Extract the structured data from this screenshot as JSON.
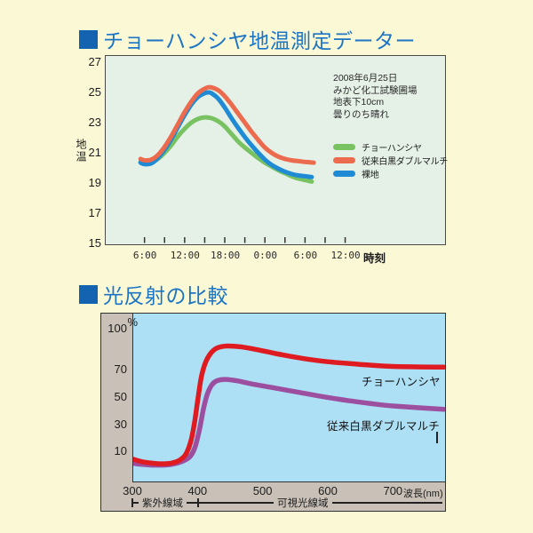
{
  "colors": {
    "page_bg": "#FBF8D6",
    "title_text": "#1C74C5",
    "title_square": "#1463B0",
    "chart1_bg": "#E5F0E7",
    "chart2_plot_bg": "#ADE0F5",
    "chart2_frame_bg": "#C9C0B7",
    "series_green": "#79C262",
    "series_red": "#EC6A4D",
    "series_blue": "#1F8BD4",
    "reflect_red": "#DF1B22",
    "reflect_purple": "#9C4E9F"
  },
  "section1": {
    "title": "チョーハンシヤ地温測定データー",
    "ylabel": "地温",
    "xlabel": "時刻",
    "annotation_lines": [
      "2008年6月25日",
      "みかど化工試験圃場",
      "地表下10cm",
      "曇りのち晴れ"
    ],
    "legend": [
      {
        "label": "チョーハンシヤ",
        "color": "#79C262"
      },
      {
        "label": "従来白黒ダブルマルチ",
        "color": "#EC6A4D"
      },
      {
        "label": "裸地",
        "color": "#1F8BD4"
      }
    ]
  },
  "section2": {
    "title": "光反射の比較",
    "unit": "%",
    "xlabel": "波長(nm)",
    "curve_labels": [
      "チョーハンシヤ",
      "従来白黒ダブルマルチ"
    ],
    "regions": [
      "紫外線域",
      "可視光線域"
    ]
  },
  "chart_data": [
    {
      "type": "line",
      "title": "チョーハンシヤ地温測定データー",
      "xlabel": "時刻",
      "ylabel": "地温",
      "ylim": [
        15,
        27
      ],
      "yticks": [
        27,
        25,
        23,
        21,
        19,
        17,
        15
      ],
      "x_hours_span": [
        0,
        51
      ],
      "xticks": [
        {
          "hour": 6,
          "label": "6:00"
        },
        {
          "hour": 12,
          "label": "12:00"
        },
        {
          "hour": 18,
          "label": "18:00"
        },
        {
          "hour": 24,
          "label": "0:00"
        },
        {
          "hour": 30,
          "label": "6:00"
        },
        {
          "hour": 36,
          "label": "12:00"
        }
      ],
      "minor_tick_every_hours": 3,
      "annotation": "2008年6月25日 みかど化工試験圃場 地表下10cm 曇りのち晴れ",
      "legend_position": "right",
      "grid": false,
      "series": [
        {
          "name": "チョーハンシヤ",
          "color": "#79C262",
          "points": [
            [
              5.4,
              20.25
            ],
            [
              6,
              20.15
            ],
            [
              7,
              20.2
            ],
            [
              8,
              20.45
            ],
            [
              9,
              20.85
            ],
            [
              10,
              21.35
            ],
            [
              11,
              21.95
            ],
            [
              12,
              22.45
            ],
            [
              13,
              22.85
            ],
            [
              14,
              23.1
            ],
            [
              15,
              23.2
            ],
            [
              16,
              23.15
            ],
            [
              17,
              22.95
            ],
            [
              18,
              22.6
            ],
            [
              19,
              22.1
            ],
            [
              20,
              21.6
            ],
            [
              21,
              21.2
            ],
            [
              22,
              20.85
            ],
            [
              23,
              20.5
            ],
            [
              24,
              20.2
            ],
            [
              25,
              19.95
            ],
            [
              26,
              19.7
            ],
            [
              27,
              19.5
            ],
            [
              28,
              19.3
            ],
            [
              29,
              19.15
            ],
            [
              30,
              19.05
            ],
            [
              31,
              18.95
            ]
          ]
        },
        {
          "name": "従来白黒ダブルマルチ",
          "color": "#EC6A4D",
          "points": [
            [
              5.4,
              20.45
            ],
            [
              6,
              20.35
            ],
            [
              7,
              20.4
            ],
            [
              8,
              20.7
            ],
            [
              9,
              21.25
            ],
            [
              10,
              21.95
            ],
            [
              11,
              22.75
            ],
            [
              12,
              23.55
            ],
            [
              13,
              24.25
            ],
            [
              14,
              24.8
            ],
            [
              15,
              25.1
            ],
            [
              15.8,
              25.2
            ],
            [
              17,
              25.0
            ],
            [
              18,
              24.6
            ],
            [
              19,
              24.05
            ],
            [
              20,
              23.45
            ],
            [
              21,
              22.85
            ],
            [
              22,
              22.25
            ],
            [
              23,
              21.7
            ],
            [
              24,
              21.2
            ],
            [
              25,
              20.85
            ],
            [
              26,
              20.6
            ],
            [
              27,
              20.45
            ],
            [
              28,
              20.35
            ],
            [
              29,
              20.3
            ],
            [
              30,
              20.25
            ],
            [
              31.3,
              20.2
            ]
          ]
        },
        {
          "name": "裸地",
          "color": "#1F8BD4",
          "points": [
            [
              5.4,
              20.2
            ],
            [
              6,
              20.1
            ],
            [
              7,
              20.15
            ],
            [
              8,
              20.5
            ],
            [
              9,
              21.05
            ],
            [
              10,
              21.75
            ],
            [
              11,
              22.55
            ],
            [
              12,
              23.35
            ],
            [
              13,
              24.05
            ],
            [
              14,
              24.55
            ],
            [
              15,
              24.8
            ],
            [
              15.6,
              24.85
            ],
            [
              16,
              24.8
            ],
            [
              17,
              24.45
            ],
            [
              18,
              23.85
            ],
            [
              19,
              23.15
            ],
            [
              20,
              22.5
            ],
            [
              21,
              21.9
            ],
            [
              22,
              21.35
            ],
            [
              23,
              20.85
            ],
            [
              24,
              20.4
            ],
            [
              25,
              20.05
            ],
            [
              26,
              19.8
            ],
            [
              27,
              19.6
            ],
            [
              28,
              19.45
            ],
            [
              29,
              19.35
            ],
            [
              30,
              19.3
            ],
            [
              31,
              19.25
            ]
          ]
        }
      ]
    },
    {
      "type": "line",
      "title": "光反射の比較",
      "xlabel": "波長(nm)",
      "ylabel": "%",
      "xlim": [
        300,
        780
      ],
      "ylim": [
        0,
        100
      ],
      "xticks": [
        300,
        400,
        500,
        600,
        700
      ],
      "yticks": [
        100,
        70,
        50,
        30,
        10
      ],
      "x_regions": [
        {
          "from": 300,
          "to": 400,
          "label": "紫外線域"
        },
        {
          "from": 400,
          "to": 780,
          "label": "可視光線域"
        }
      ],
      "grid": false,
      "series": [
        {
          "name": "チョーハンシヤ",
          "color": "#DF1B22",
          "points": [
            [
              300,
              4.5
            ],
            [
              315,
              2.5
            ],
            [
              330,
              1.5
            ],
            [
              345,
              1
            ],
            [
              360,
              1.5
            ],
            [
              372,
              3.5
            ],
            [
              382,
              8
            ],
            [
              390,
              18
            ],
            [
              396,
              33
            ],
            [
              401,
              50
            ],
            [
              406,
              65
            ],
            [
              412,
              75
            ],
            [
              420,
              82
            ],
            [
              430,
              86
            ],
            [
              445,
              87.5
            ],
            [
              465,
              87
            ],
            [
              490,
              85
            ],
            [
              520,
              82
            ],
            [
              560,
              78.5
            ],
            [
              600,
              76
            ],
            [
              650,
              74
            ],
            [
              700,
              72.5
            ],
            [
              778,
              72
            ]
          ]
        },
        {
          "name": "従来白黒ダブルマルチ",
          "color": "#9C4E9F",
          "points": [
            [
              300,
              1.5
            ],
            [
              315,
              0.5
            ],
            [
              330,
              0
            ],
            [
              345,
              0
            ],
            [
              360,
              0.5
            ],
            [
              375,
              2.5
            ],
            [
              388,
              6
            ],
            [
              396,
              13
            ],
            [
              403,
              26
            ],
            [
              409,
              41
            ],
            [
              415,
              52
            ],
            [
              422,
              59
            ],
            [
              430,
              62
            ],
            [
              442,
              63
            ],
            [
              460,
              62
            ],
            [
              485,
              59.5
            ],
            [
              515,
              57
            ],
            [
              550,
              54
            ],
            [
              590,
              50.5
            ],
            [
              630,
              47.5
            ],
            [
              670,
              45
            ],
            [
              700,
              43.5
            ],
            [
              778,
              41
            ]
          ]
        }
      ]
    }
  ]
}
